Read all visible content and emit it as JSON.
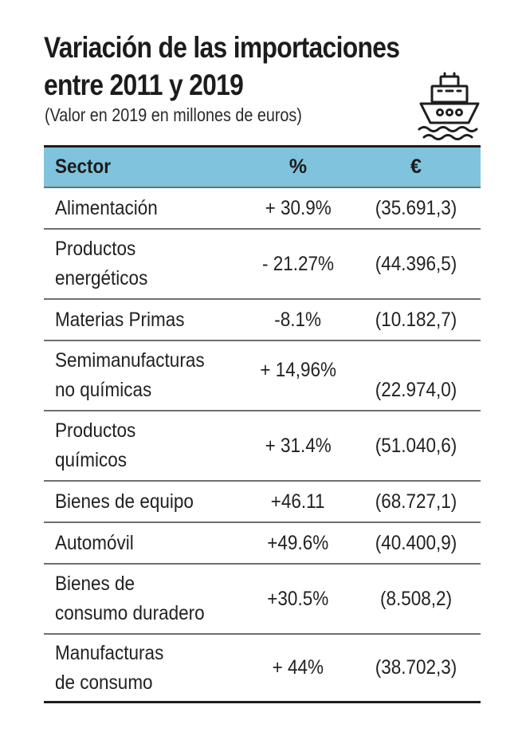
{
  "title": {
    "line1": "Variación de las importaciones",
    "line2": "entre 2011 y 2019"
  },
  "subtitle": "(Valor en 2019 en millones de euros)",
  "icon": "ship-icon",
  "colors": {
    "header_bg": "#7fc4dc",
    "text": "#1e1e1e"
  },
  "table": {
    "headers": {
      "sector": "Sector",
      "pct": "%",
      "eur": "€"
    },
    "rows": [
      {
        "sector_l1": "Alimentación",
        "sector_l2": "",
        "pct": "+ 30.9%",
        "eur": "(35.691,3)"
      },
      {
        "sector_l1": "Productos",
        "sector_l2": "energéticos",
        "pct": "- 21.27%",
        "eur": "(44.396,5)"
      },
      {
        "sector_l1": "Materias Primas",
        "sector_l2": "",
        "pct": "-8.1%",
        "eur": "(10.182,7)"
      },
      {
        "sector_l1": "Semimanufacturas",
        "sector_l2": "no químicas",
        "pct": "+ 14,96%",
        "eur": "(22.974,0)"
      },
      {
        "sector_l1": "Productos",
        "sector_l2": "químicos",
        "pct": "+ 31.4%",
        "eur": "(51.040,6)"
      },
      {
        "sector_l1": "Bienes de equipo",
        "sector_l2": "",
        "pct": "+46.11",
        "eur": "(68.727,1)"
      },
      {
        "sector_l1": "Automóvil",
        "sector_l2": "",
        "pct": "+49.6%",
        "eur": "(40.400,9)"
      },
      {
        "sector_l1": "Bienes de",
        "sector_l2": "consumo duradero",
        "pct": "+30.5%",
        "eur": "(8.508,2)"
      },
      {
        "sector_l1": "Manufacturas",
        "sector_l2": "de consumo",
        "pct": "+ 44%",
        "eur": "(38.702,3)"
      }
    ]
  }
}
